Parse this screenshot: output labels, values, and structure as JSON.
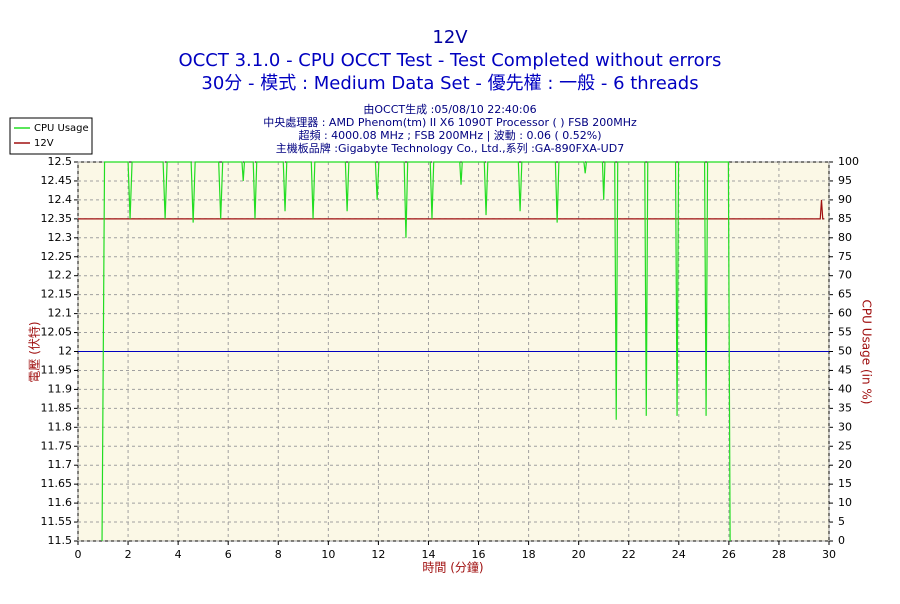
{
  "chart_data": {
    "type": "line",
    "title": "12V",
    "subtitle": [
      "OCCT 3.1.0 - CPU OCCT Test - Test Completed without errors",
      "30分 - 模式 : Medium Data Set - 優先權 : 一般 - 6 threads"
    ],
    "info": [
      "由OCCT生成 :05/08/10 22:40:06",
      "中央處理器 : AMD Phenom(tm) II X6 1090T Processor (  ) FSB 200MHz",
      "超頻 : 4000.08 MHz ; FSB 200MHz | 波動 : 0.06 ( 0.52%)",
      "主機板品牌 :Gigabyte Technology Co., Ltd.,系列 :GA-890FXA-UD7"
    ],
    "xlabel": "時間 (分鐘)",
    "ylabel": "電壓 (伏特)",
    "y2label": "CPU Usage (in %)",
    "xlim": [
      0,
      30
    ],
    "xticks": [
      0,
      2,
      4,
      6,
      8,
      10,
      12,
      14,
      16,
      18,
      20,
      22,
      24,
      26,
      28,
      30
    ],
    "ylim": [
      11.5,
      12.5
    ],
    "yticks": [
      11.5,
      11.55,
      11.6,
      11.65,
      11.7,
      11.75,
      11.8,
      11.85,
      11.9,
      11.95,
      12,
      12.05,
      12.1,
      12.15,
      12.2,
      12.25,
      12.3,
      12.35,
      12.4,
      12.45,
      12.5
    ],
    "y2lim": [
      0,
      100
    ],
    "y2ticks": [
      0,
      5,
      10,
      15,
      20,
      25,
      30,
      35,
      40,
      45,
      50,
      55,
      60,
      65,
      70,
      75,
      80,
      85,
      90,
      95,
      100
    ],
    "grid": true,
    "ref_line": {
      "value": 12,
      "color": "#0000c0"
    },
    "series": [
      {
        "name": "CPU Usage",
        "color": "#22dd22",
        "axis": "y2",
        "x": [
          0.96,
          1.06,
          2.0,
          2.08,
          2.16,
          3.4,
          3.48,
          3.56,
          4.52,
          4.6,
          4.68,
          5.62,
          5.7,
          5.78,
          6.55,
          6.6,
          6.65,
          7.0,
          7.07,
          7.14,
          8.2,
          8.27,
          8.34,
          9.32,
          9.39,
          9.46,
          10.68,
          10.75,
          10.82,
          11.88,
          11.95,
          12.02,
          13.03,
          13.1,
          13.17,
          14.07,
          14.14,
          14.21,
          15.25,
          15.3,
          15.35,
          16.23,
          16.3,
          16.37,
          17.59,
          17.66,
          17.73,
          19.07,
          19.14,
          19.21,
          20.21,
          20.26,
          20.31,
          20.95,
          21.0,
          21.05,
          21.44,
          21.5,
          21.56,
          22.64,
          22.7,
          22.76,
          23.87,
          23.93,
          23.99,
          25.03,
          25.09,
          25.15,
          25.98,
          26.05
        ],
        "values": [
          0,
          100,
          100,
          85,
          100,
          100,
          85,
          100,
          100,
          84,
          100,
          100,
          85,
          100,
          100,
          95,
          100,
          100,
          85,
          100,
          100,
          87,
          100,
          100,
          85,
          100,
          100,
          87,
          100,
          100,
          90,
          100,
          100,
          80,
          100,
          100,
          85,
          100,
          100,
          94,
          100,
          100,
          86,
          100,
          100,
          87,
          100,
          100,
          84,
          100,
          100,
          97,
          100,
          100,
          90,
          100,
          100,
          32,
          100,
          100,
          33,
          100,
          100,
          33,
          100,
          100,
          33,
          100,
          100,
          0
        ]
      },
      {
        "name": "12V",
        "color": "#a01010",
        "axis": "y",
        "x": [
          0,
          29.65,
          29.7,
          29.75,
          29.8
        ],
        "values": [
          12.35,
          12.35,
          12.4,
          12.35,
          12.35
        ]
      }
    ]
  }
}
